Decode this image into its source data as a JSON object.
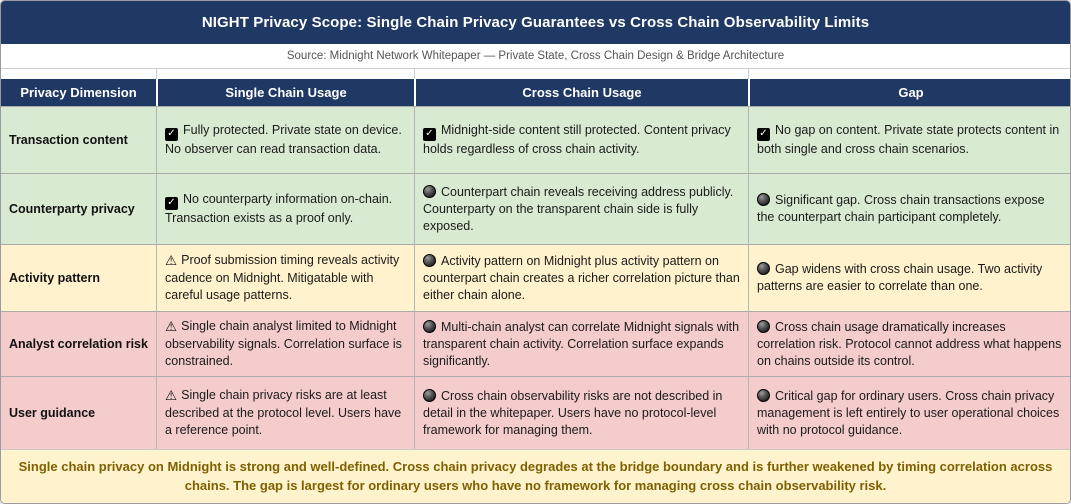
{
  "chart_data": {
    "type": "table",
    "title": "NIGHT Privacy Scope: Single Chain Privacy Guarantees vs Cross Chain Observability Limits",
    "subtitle": "Source: Midnight Network Whitepaper — Private State, Cross Chain Design & Bridge Architecture",
    "columns": [
      "Privacy Dimension",
      "Single Chain Usage",
      "Cross Chain Usage",
      "Gap"
    ],
    "rows": [
      {
        "dimension": "Transaction content",
        "tone": "green",
        "single": {
          "icon": "check",
          "text": "Fully protected. Private state on device. No observer can read transaction data."
        },
        "cross": {
          "icon": "check",
          "text": "Midnight-side content still protected. Content privacy holds regardless of cross chain activity."
        },
        "gap": {
          "icon": "check",
          "text": "No gap on content. Private state protects content in both single and cross chain scenarios."
        }
      },
      {
        "dimension": "Counterparty privacy",
        "tone": "green",
        "single": {
          "icon": "check",
          "text": "No counterparty information on-chain. Transaction exists as a proof only."
        },
        "cross": {
          "icon": "circle",
          "text": "Counterpart chain reveals receiving address publicly. Counterparty on the transparent chain side is fully exposed."
        },
        "gap": {
          "icon": "circle",
          "text": "Significant gap. Cross chain transactions expose the counterpart chain participant completely."
        }
      },
      {
        "dimension": "Activity pattern",
        "tone": "yellow",
        "single": {
          "icon": "warning",
          "text": "Proof submission timing reveals activity cadence on Midnight. Mitigatable with careful usage patterns."
        },
        "cross": {
          "icon": "circle",
          "text": "Activity pattern on Midnight plus activity pattern on counterpart chain creates a richer correlation picture than either chain alone."
        },
        "gap": {
          "icon": "circle",
          "text": "Gap widens with cross chain usage. Two activity patterns are easier to correlate than one."
        }
      },
      {
        "dimension": "Analyst correlation risk",
        "tone": "pink",
        "single": {
          "icon": "warning",
          "text": "Single chain analyst limited to Midnight observability signals. Correlation surface is constrained."
        },
        "cross": {
          "icon": "circle",
          "text": "Multi-chain analyst can correlate Midnight signals with transparent chain activity. Correlation surface expands significantly."
        },
        "gap": {
          "icon": "circle",
          "text": "Cross chain usage dramatically increases correlation risk. Protocol cannot address what happens on chains outside its control."
        }
      },
      {
        "dimension": "User guidance",
        "tone": "pink",
        "single": {
          "icon": "warning",
          "text": "Single chain privacy risks are at least described at the protocol level. Users have a reference point."
        },
        "cross": {
          "icon": "circle",
          "text": "Cross chain observability risks are not described in detail in the whitepaper. Users have no protocol-level framework for managing them."
        },
        "gap": {
          "icon": "circle",
          "text": "Critical gap for ordinary users. Cross chain privacy management is left entirely to user operational choices with no protocol guidance."
        }
      }
    ],
    "footer": "Single chain privacy on Midnight is strong and well-defined. Cross chain privacy degrades at the bridge boundary and is further weakened by timing correlation across chains. The gap is largest for ordinary users who have no framework for managing cross chain observability risk.",
    "colors": {
      "navy": "#1F3864",
      "row_green": "#D9EAD3",
      "row_yellow": "#FFF2CC",
      "row_pink": "#F4CCCC",
      "footer_bg": "#FFF3CD",
      "footer_text": "#7F6000"
    }
  }
}
